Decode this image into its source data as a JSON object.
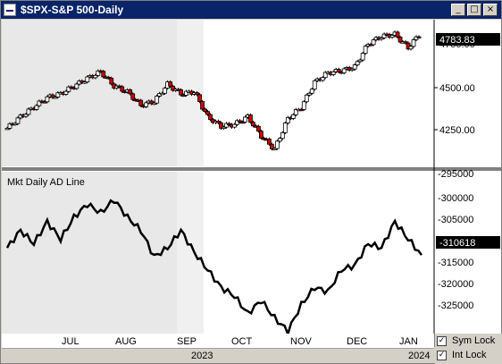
{
  "window": {
    "title": "$SPX-S&P 500-Daily",
    "buttons": {
      "minimize": "_",
      "maximize": "□",
      "close": "×"
    }
  },
  "upper_panel": {
    "last_value": "4783.83",
    "partial_top_label": "4750.00",
    "y_labels": [
      "4500.00",
      "4250.00"
    ]
  },
  "lower_panel": {
    "label": "Mkt Daily AD Line",
    "last_value": "-310618",
    "y_labels": [
      "-295000",
      "-300000",
      "-305000",
      "-315000",
      "-320000",
      "-325000"
    ]
  },
  "time_axis": {
    "months": [
      "JUL",
      "AUG",
      "SEP",
      "OCT",
      "NOV",
      "DEC",
      "JAN"
    ],
    "years": [
      "2023",
      "2024"
    ]
  },
  "locks": [
    {
      "label": "Sym Lock",
      "checked": true
    },
    {
      "label": "Int Lock",
      "checked": true
    }
  ],
  "colors": {
    "up_candle": "#ffffff",
    "down_candle": "#cc0000",
    "ad_line": "#000000"
  },
  "chart_data": [
    {
      "type": "candlestick",
      "title": "$SPX-S&P 500-Daily",
      "ylim": [
        4100,
        4800
      ],
      "x": [
        "Jun 5",
        "Jun 12",
        "Jun 20",
        "Jun 26",
        "Jul 3",
        "Jul 10",
        "Jul 17",
        "Jul 24",
        "Jul 31",
        "Aug 7",
        "Aug 14",
        "Aug 21",
        "Aug 28",
        "Sep 5",
        "Sep 11",
        "Sep 18",
        "Sep 25",
        "Oct 2",
        "Oct 9",
        "Oct 16",
        "Oct 23",
        "Oct 30",
        "Nov 6",
        "Nov 13",
        "Nov 20",
        "Nov 27",
        "Dec 4",
        "Dec 11",
        "Dec 18",
        "Dec 26",
        "Jan 2",
        "Jan 8"
      ],
      "close": [
        4280,
        4340,
        4390,
        4440,
        4460,
        4500,
        4540,
        4575,
        4500,
        4470,
        4400,
        4420,
        4510,
        4460,
        4470,
        4340,
        4290,
        4300,
        4340,
        4240,
        4170,
        4330,
        4390,
        4520,
        4570,
        4580,
        4600,
        4720,
        4760,
        4770,
        4700,
        4783.83
      ]
    },
    {
      "type": "line",
      "title": "Mkt Daily AD Line",
      "ylim": [
        -330000,
        -292000
      ],
      "x": [
        "Jun 5",
        "Jun 12",
        "Jun 20",
        "Jun 26",
        "Jul 3",
        "Jul 10",
        "Jul 17",
        "Jul 24",
        "Jul 31",
        "Aug 7",
        "Aug 14",
        "Aug 21",
        "Aug 28",
        "Sep 5",
        "Sep 11",
        "Sep 18",
        "Sep 25",
        "Oct 2",
        "Oct 9",
        "Oct 16",
        "Oct 23",
        "Oct 30",
        "Nov 6",
        "Nov 13",
        "Nov 20",
        "Nov 27",
        "Dec 4",
        "Dec 11",
        "Dec 18",
        "Dec 26",
        "Jan 2",
        "Jan 8"
      ],
      "values": [
        -309000,
        -305000,
        -308000,
        -303000,
        -307000,
        -302000,
        -299000,
        -301000,
        -298000,
        -302000,
        -305000,
        -311000,
        -309000,
        -305000,
        -310000,
        -314000,
        -318000,
        -320000,
        -324000,
        -321000,
        -325000,
        -328000,
        -322000,
        -318000,
        -319000,
        -314000,
        -313000,
        -308000,
        -309000,
        -303000,
        -307000,
        -310618
      ]
    }
  ]
}
